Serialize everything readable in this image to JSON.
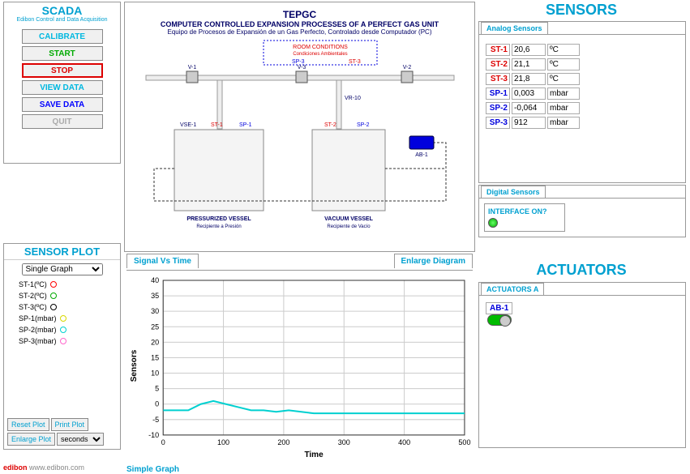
{
  "scada": {
    "title": "SCADA",
    "subtitle": "Edibon Control and Data Acquisition",
    "buttons": {
      "calibrate": "CALIBRATE",
      "start": "START",
      "stop": "STOP",
      "view_data": "VIEW DATA",
      "save_data": "SAVE DATA",
      "quit": "QUIT"
    }
  },
  "sensor_plot": {
    "title": "SENSOR PLOT",
    "select": "Single Graph",
    "items": [
      {
        "label": "ST-1(ºC)",
        "color": "#ff0000"
      },
      {
        "label": "ST-2(ºC)",
        "color": "#00aa00"
      },
      {
        "label": "ST-3(ºC)",
        "color": "#000000"
      },
      {
        "label": "SP-1(mbar)",
        "color": "#d8d800"
      },
      {
        "label": "SP-2(mbar)",
        "color": "#00d0d0"
      },
      {
        "label": "SP-3(mbar)",
        "color": "#ff66cc"
      }
    ],
    "reset": "Reset Plot",
    "print": "Print Plot",
    "enlarge": "Enlarge Plot",
    "time_unit": "seconds"
  },
  "diagram": {
    "t1": "TEPGC",
    "t2": "COMPUTER CONTROLLED EXPANSION PROCESSES OF A PERFECT GAS UNIT",
    "t3": "Equipo de Procesos de Expansión de un Gas Perfecto, Controlado desde Computador (PC)",
    "room": "ROOM CONDITIONS",
    "room_es": "Condiciones Ambientales",
    "labels": {
      "v1": "V-1",
      "v2": "V-2",
      "v3": "V-3",
      "vr10": "VR-10",
      "vse1": "VSE-1",
      "st1": "ST-1",
      "st2": "ST-2",
      "st3": "ST-3",
      "sp1": "SP-1",
      "sp2": "SP-2",
      "sp3": "SP-3",
      "ab1": "AB-1",
      "pv": "PRESSURIZED VESSEL",
      "pv_es": "Recipiente a Presión",
      "vv": "VACUUM VESSEL",
      "vv_es": "Recipiente de Vacío"
    }
  },
  "chart": {
    "tab_left": "Signal Vs Time",
    "tab_right": "Enlarge Diagram",
    "ylabel": "Sensors",
    "xlabel": "Time",
    "footer": "Simple Graph",
    "ylim": [
      -10,
      40
    ],
    "ytick_step": 5,
    "xlim": [
      0,
      500
    ],
    "xtick_step": 100,
    "line_color": "#00d0d0",
    "grid_color": "#cccccc",
    "data_y": [
      -2,
      -2,
      -2,
      0,
      1,
      0,
      -1,
      -2,
      -2,
      -2.5,
      -2,
      -2.5,
      -3,
      -3,
      -3,
      -3,
      -3,
      -3,
      -3,
      -3,
      -3,
      -3,
      -3,
      -3,
      -3
    ]
  },
  "sensors": {
    "title": "SENSORS",
    "tab": "Analog Sensors",
    "rows": [
      {
        "id": "ST-1",
        "cls": "red",
        "val": "20,6",
        "unit": "ºC"
      },
      {
        "id": "ST-2",
        "cls": "red",
        "val": "21,1",
        "unit": "ºC"
      },
      {
        "id": "ST-3",
        "cls": "red",
        "val": "21,8",
        "unit": "ºC"
      },
      {
        "id": "SP-1",
        "cls": "blue",
        "val": "0,003",
        "unit": "mbar"
      },
      {
        "id": "SP-2",
        "cls": "blue",
        "val": "-0,064",
        "unit": "mbar"
      },
      {
        "id": "SP-3",
        "cls": "blue",
        "val": "912",
        "unit": "mbar"
      }
    ]
  },
  "digital": {
    "tab": "Digital Sensors",
    "label": "INTERFACE ON?"
  },
  "actuators": {
    "title": "ACTUATORS",
    "tab": "ACTUATORS A",
    "ab1": "AB-1"
  },
  "footer": {
    "brand": "edibon",
    "url": "www.edibon.com"
  }
}
